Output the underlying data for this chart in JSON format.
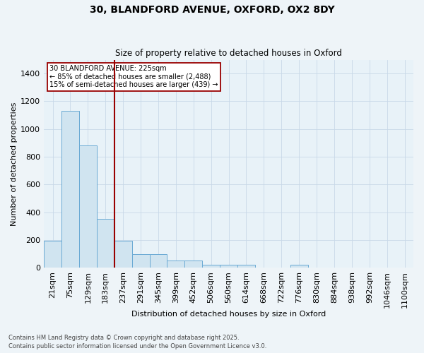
{
  "title_line1": "30, BLANDFORD AVENUE, OXFORD, OX2 8DY",
  "title_line2": "Size of property relative to detached houses in Oxford",
  "xlabel": "Distribution of detached houses by size in Oxford",
  "ylabel": "Number of detached properties",
  "bar_color": "#d0e4f0",
  "bar_edge_color": "#6aaad4",
  "bg_color": "#e8f2f8",
  "grid_color": "#c8d8e8",
  "fig_color": "#eef4f8",
  "vline_color": "#990000",
  "annotation_box_text": "30 BLANDFORD AVENUE: 225sqm\n← 85% of detached houses are smaller (2,488)\n15% of semi-detached houses are larger (439) →",
  "footnote": "Contains HM Land Registry data © Crown copyright and database right 2025.\nContains public sector information licensed under the Open Government Licence v3.0.",
  "categories": [
    "21sqm",
    "75sqm",
    "129sqm",
    "183sqm",
    "237sqm",
    "291sqm",
    "345sqm",
    "399sqm",
    "452sqm",
    "506sqm",
    "560sqm",
    "614sqm",
    "668sqm",
    "722sqm",
    "776sqm",
    "830sqm",
    "884sqm",
    "938sqm",
    "992sqm",
    "1046sqm",
    "1100sqm"
  ],
  "values": [
    195,
    1130,
    880,
    350,
    195,
    95,
    95,
    50,
    50,
    20,
    20,
    20,
    0,
    0,
    20,
    0,
    0,
    0,
    0,
    0,
    0
  ],
  "vline_index": 3.5,
  "ylim": [
    0,
    1500
  ],
  "yticks": [
    0,
    200,
    400,
    600,
    800,
    1000,
    1200,
    1400
  ]
}
